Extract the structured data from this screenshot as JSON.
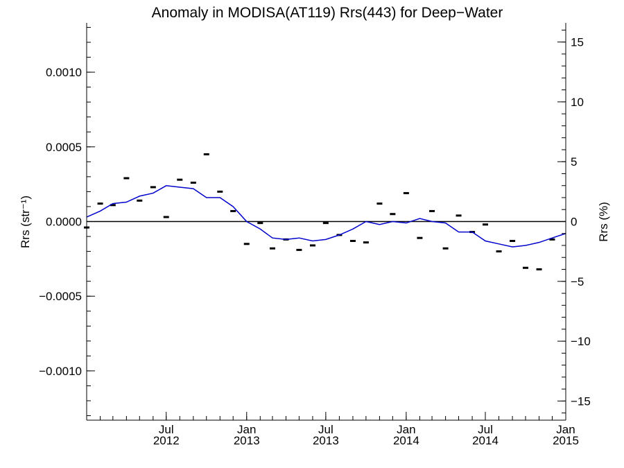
{
  "chart_data": {
    "type": "scatter",
    "title": "Anomaly in MODISA(AT119) Rrs(443) for Deep−Water",
    "ylabel_left": "Rrs (str⁻¹)",
    "ylabel_right": "Rrs (%)",
    "x_axis": {
      "start": "2012-01-01",
      "end": "2015-01-01",
      "tick_labels": [
        {
          "date": "2012-07-01",
          "month": "Jul",
          "year": "2012"
        },
        {
          "date": "2013-01-01",
          "month": "Jan",
          "year": "2013"
        },
        {
          "date": "2013-07-01",
          "month": "Jul",
          "year": "2013"
        },
        {
          "date": "2014-01-01",
          "month": "Jan",
          "year": "2014"
        },
        {
          "date": "2014-07-01",
          "month": "Jul",
          "year": "2014"
        },
        {
          "date": "2015-01-01",
          "month": "Jan",
          "year": "2015"
        }
      ]
    },
    "y_left": {
      "range": [
        -0.00133,
        0.00133
      ],
      "ticks": [
        -0.001,
        -0.0005,
        0.0,
        0.0005,
        0.001
      ],
      "tick_labels": [
        "−0.0010",
        "−0.0005",
        "0.0000",
        "0.0005",
        "0.0010"
      ]
    },
    "y_right": {
      "range": [
        -16.6,
        16.6
      ],
      "ticks": [
        -15,
        -10,
        -5,
        0,
        5,
        10,
        15
      ],
      "tick_labels": [
        "−15",
        "−10",
        "−5",
        "0",
        "5",
        "10",
        "15"
      ]
    },
    "zero_line": true,
    "grid": false,
    "legend": "none",
    "colors": {
      "smoothed_line": "#0000cc",
      "points": "#000000",
      "zero_line": "#000000"
    },
    "series": [
      {
        "kind": "points",
        "marker": "horizontal-dash",
        "points": [
          {
            "x": "2012-01-01",
            "y": -4e-05
          },
          {
            "x": "2012-02-01",
            "y": 0.00012
          },
          {
            "x": "2012-03-01",
            "y": 0.00011
          },
          {
            "x": "2012-04-01",
            "y": 0.00029
          },
          {
            "x": "2012-05-01",
            "y": 0.00014
          },
          {
            "x": "2012-06-01",
            "y": 0.00023
          },
          {
            "x": "2012-07-01",
            "y": 3e-05
          },
          {
            "x": "2012-08-01",
            "y": 0.00028
          },
          {
            "x": "2012-09-01",
            "y": 0.00026
          },
          {
            "x": "2012-10-01",
            "y": 0.00045
          },
          {
            "x": "2012-11-01",
            "y": 0.0002
          },
          {
            "x": "2012-12-01",
            "y": 7e-05
          },
          {
            "x": "2013-01-01",
            "y": -0.00015
          },
          {
            "x": "2013-02-01",
            "y": -1e-05
          },
          {
            "x": "2013-03-01",
            "y": -0.00018
          },
          {
            "x": "2013-04-01",
            "y": -0.00012
          },
          {
            "x": "2013-05-01",
            "y": -0.00019
          },
          {
            "x": "2013-06-01",
            "y": -0.00016
          },
          {
            "x": "2013-07-01",
            "y": -1e-05
          },
          {
            "x": "2013-08-01",
            "y": -9e-05
          },
          {
            "x": "2013-09-01",
            "y": -0.00013
          },
          {
            "x": "2013-10-01",
            "y": -0.00014
          },
          {
            "x": "2013-11-01",
            "y": 0.00012
          },
          {
            "x": "2013-12-01",
            "y": 5e-05
          },
          {
            "x": "2014-01-01",
            "y": 0.00019
          },
          {
            "x": "2014-02-01",
            "y": -0.00011
          },
          {
            "x": "2014-03-01",
            "y": 7e-05
          },
          {
            "x": "2014-04-01",
            "y": -0.00018
          },
          {
            "x": "2014-05-01",
            "y": 4e-05
          },
          {
            "x": "2014-06-01",
            "y": -7e-05
          },
          {
            "x": "2014-07-01",
            "y": -2e-05
          },
          {
            "x": "2014-08-01",
            "y": -0.0002
          },
          {
            "x": "2014-09-01",
            "y": -0.00013
          },
          {
            "x": "2014-10-01",
            "y": -0.00031
          },
          {
            "x": "2014-11-01",
            "y": -0.00032
          },
          {
            "x": "2014-12-01",
            "y": -0.00012
          }
        ]
      },
      {
        "kind": "line",
        "points": [
          {
            "x": "2012-01-01",
            "y": 3e-05
          },
          {
            "x": "2012-02-01",
            "y": 7e-05
          },
          {
            "x": "2012-03-01",
            "y": 0.00012
          },
          {
            "x": "2012-04-01",
            "y": 0.00013
          },
          {
            "x": "2012-05-01",
            "y": 0.00017
          },
          {
            "x": "2012-06-01",
            "y": 0.00019
          },
          {
            "x": "2012-07-01",
            "y": 0.00024
          },
          {
            "x": "2012-08-01",
            "y": 0.00023
          },
          {
            "x": "2012-09-01",
            "y": 0.00022
          },
          {
            "x": "2012-10-01",
            "y": 0.00016
          },
          {
            "x": "2012-11-01",
            "y": 0.00016
          },
          {
            "x": "2012-12-01",
            "y": 0.0001
          },
          {
            "x": "2013-01-01",
            "y": 0.0
          },
          {
            "x": "2013-02-01",
            "y": -5e-05
          },
          {
            "x": "2013-03-01",
            "y": -0.00011
          },
          {
            "x": "2013-04-01",
            "y": -0.00012
          },
          {
            "x": "2013-05-01",
            "y": -0.00011
          },
          {
            "x": "2013-06-01",
            "y": -0.00013
          },
          {
            "x": "2013-07-01",
            "y": -0.00012
          },
          {
            "x": "2013-08-01",
            "y": -9e-05
          },
          {
            "x": "2013-09-01",
            "y": -5e-05
          },
          {
            "x": "2013-10-01",
            "y": 0.0
          },
          {
            "x": "2013-11-01",
            "y": -2e-05
          },
          {
            "x": "2013-12-01",
            "y": 0.0
          },
          {
            "x": "2014-01-01",
            "y": -1e-05
          },
          {
            "x": "2014-02-01",
            "y": 2e-05
          },
          {
            "x": "2014-03-01",
            "y": 0.0
          },
          {
            "x": "2014-04-01",
            "y": -1e-05
          },
          {
            "x": "2014-05-01",
            "y": -7e-05
          },
          {
            "x": "2014-06-01",
            "y": -7e-05
          },
          {
            "x": "2014-07-01",
            "y": -0.00013
          },
          {
            "x": "2014-08-01",
            "y": -0.00015
          },
          {
            "x": "2014-09-01",
            "y": -0.00017
          },
          {
            "x": "2014-10-01",
            "y": -0.00016
          },
          {
            "x": "2014-11-01",
            "y": -0.00014
          },
          {
            "x": "2014-12-01",
            "y": -0.00011
          },
          {
            "x": "2015-01-01",
            "y": -8e-05
          }
        ]
      }
    ]
  }
}
